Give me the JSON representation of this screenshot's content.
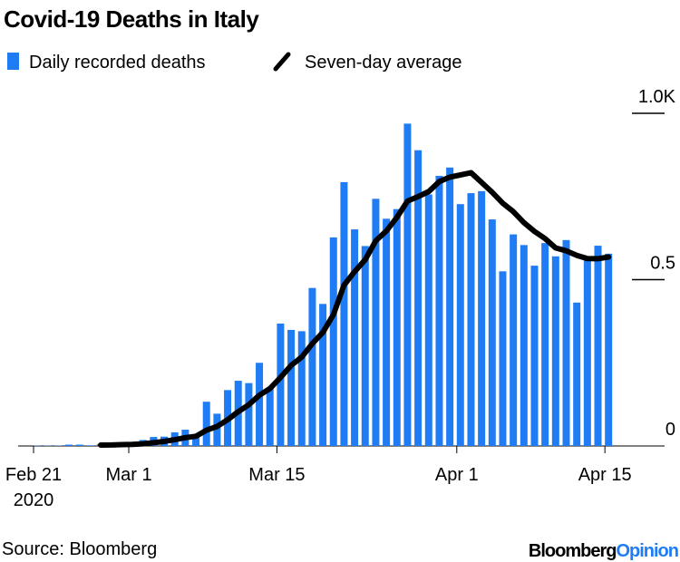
{
  "chart_data": {
    "type": "bar",
    "title": "Covid-19 Deaths in Italy",
    "source": "Source: Bloomberg",
    "brand": {
      "name": "Bloomberg",
      "suffix": "Opinion"
    },
    "x": [
      "2020-02-21",
      "2020-02-22",
      "2020-02-23",
      "2020-02-24",
      "2020-02-25",
      "2020-02-26",
      "2020-02-27",
      "2020-02-28",
      "2020-02-29",
      "2020-03-01",
      "2020-03-02",
      "2020-03-03",
      "2020-03-04",
      "2020-03-05",
      "2020-03-06",
      "2020-03-07",
      "2020-03-08",
      "2020-03-09",
      "2020-03-10",
      "2020-03-11",
      "2020-03-12",
      "2020-03-13",
      "2020-03-14",
      "2020-03-15",
      "2020-03-16",
      "2020-03-17",
      "2020-03-18",
      "2020-03-19",
      "2020-03-20",
      "2020-03-21",
      "2020-03-22",
      "2020-03-23",
      "2020-03-24",
      "2020-03-25",
      "2020-03-26",
      "2020-03-27",
      "2020-03-28",
      "2020-03-29",
      "2020-03-30",
      "2020-03-31",
      "2020-04-01",
      "2020-04-02",
      "2020-04-03",
      "2020-04-04",
      "2020-04-05",
      "2020-04-06",
      "2020-04-07",
      "2020-04-08",
      "2020-04-09",
      "2020-04-10",
      "2020-04-11",
      "2020-04-12",
      "2020-04-13",
      "2020-04-14",
      "2020-04-15"
    ],
    "xticks": [
      {
        "value": "2020-02-21",
        "label": "Feb 21"
      },
      {
        "value": "2020-03-01",
        "label": "Mar 1"
      },
      {
        "value": "2020-03-15",
        "label": "Mar 15"
      },
      {
        "value": "2020-04-01",
        "label": "Apr 1"
      },
      {
        "value": "2020-04-15",
        "label": "Apr 15"
      }
    ],
    "x_year_label": "2020",
    "series": [
      {
        "name": "Daily recorded deaths",
        "type": "bar",
        "color": "#1f7cf4",
        "values": [
          0.001,
          0.001,
          0.001,
          0.004,
          0.004,
          0.002,
          0.005,
          0.004,
          0.008,
          0.005,
          0.018,
          0.027,
          0.028,
          0.041,
          0.049,
          0.036,
          0.133,
          0.097,
          0.168,
          0.196,
          0.189,
          0.25,
          0.175,
          0.368,
          0.349,
          0.345,
          0.475,
          0.427,
          0.627,
          0.793,
          0.651,
          0.601,
          0.743,
          0.683,
          0.712,
          0.969,
          0.889,
          0.756,
          0.812,
          0.837,
          0.727,
          0.76,
          0.766,
          0.681,
          0.525,
          0.636,
          0.604,
          0.542,
          0.61,
          0.57,
          0.619,
          0.431,
          0.566,
          0.602,
          0.578
        ]
      },
      {
        "name": "Seven-day average",
        "type": "line",
        "color": "#000000",
        "values": [
          null,
          null,
          null,
          null,
          null,
          null,
          0.0026,
          0.003,
          0.004,
          0.0046,
          0.0066,
          0.0099,
          0.0136,
          0.0187,
          0.0251,
          0.0291,
          0.0474,
          0.0587,
          0.0789,
          0.1029,
          0.124,
          0.1527,
          0.1726,
          0.2061,
          0.2421,
          0.2674,
          0.3073,
          0.3413,
          0.3951,
          0.4834,
          0.5239,
          0.5599,
          0.6167,
          0.6464,
          0.6871,
          0.736,
          0.7497,
          0.7647,
          0.7949,
          0.8083,
          0.8146,
          0.8214,
          0.7924,
          0.7627,
          0.7297,
          0.7046,
          0.6713,
          0.6449,
          0.6234,
          0.5954,
          0.5866,
          0.5731,
          0.5631,
          0.5629,
          0.568
        ]
      }
    ],
    "ylim": [
      0,
      1
    ],
    "yticks": [
      0,
      0.5,
      {
        "value": 1,
        "label": "1.0K"
      }
    ]
  }
}
